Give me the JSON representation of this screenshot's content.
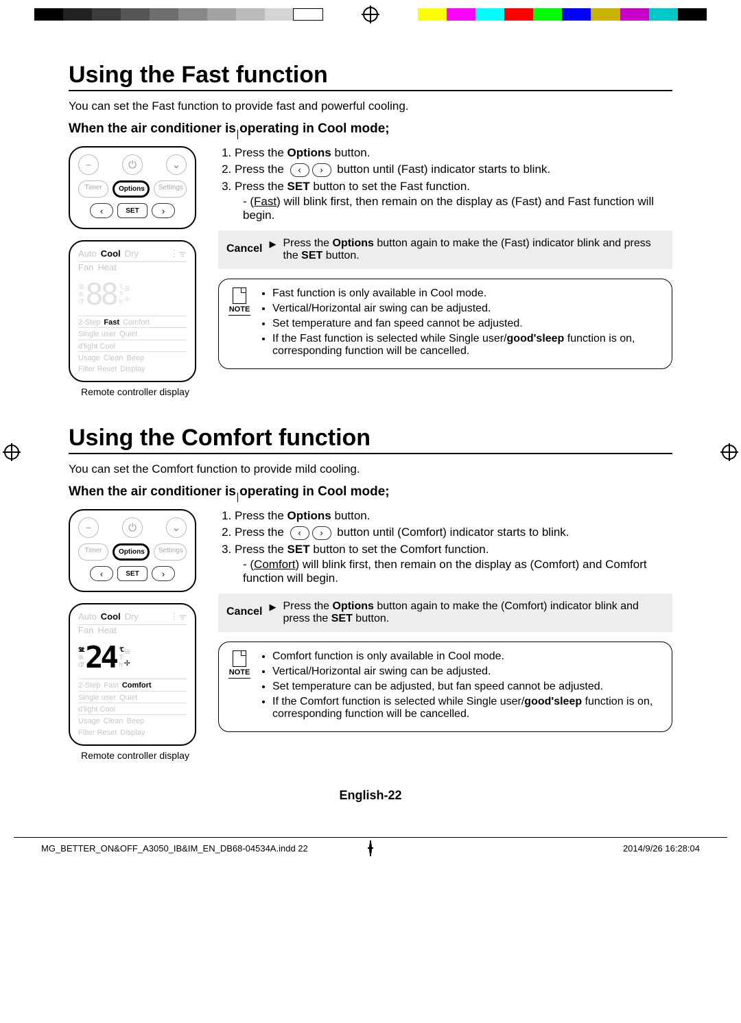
{
  "colorbar": {
    "left": [
      "#000000",
      "#222222",
      "#3c3c3c",
      "#555555",
      "#6f6f6f",
      "#888888",
      "#a2a2a2",
      "#bbbbbb",
      "#d5d5d5",
      "#ffffff"
    ],
    "right": [
      "#ffff00",
      "#ff00ff",
      "#00ffff",
      "#ff0000",
      "#00ff00",
      "#0000ff",
      "#c8b400",
      "#c800c8",
      "#00c8c8",
      "#000000"
    ]
  },
  "sectionA": {
    "title": "Using the Fast function",
    "intro": "You can set the Fast function to provide fast and powerful cooling.",
    "condition": "When the air conditioner is operating in Cool mode;",
    "steps": {
      "s1_a": "Press the ",
      "s1_b": "Options",
      "s1_c": " button.",
      "s2_a": "Press the ",
      "s2_b": " button until (Fast) indicator starts to blink.",
      "s3_a": "Press the ",
      "s3_b": "SET",
      "s3_c": " button to set the Fast function.",
      "s3_sub_a": "- (",
      "s3_sub_u": "Fast",
      "s3_sub_b": ") will blink first, then remain on the display as (Fast) and Fast function will begin."
    },
    "cancel": {
      "label": "Cancel",
      "a": "Press the ",
      "b": "Options",
      "c": " button again to make the (Fast) indicator blink and press the ",
      "d": "SET",
      "e": " button."
    },
    "notes": {
      "label": "NOTE",
      "n1": "Fast function is only available in Cool mode.",
      "n2": "Vertical/Horizontal air swing can be adjusted.",
      "n3": "Set temperature and fan speed cannot be adjusted.",
      "n4_a": "If  the Fast function is selected while Single user/",
      "n4_b": "good'sleep",
      "n4_c": " function is on, corresponding function will be cancelled."
    },
    "remote": {
      "timer": "Timer",
      "options": "Options",
      "settings": "Settings",
      "set": "SET"
    },
    "display": {
      "auto": "Auto",
      "cool": "Cool",
      "dry": "Dry",
      "fan": "Fan",
      "heat": "Heat",
      "set": "Set",
      "on": "On",
      "off": "Off",
      "degC": "°C",
      "degF": "°F",
      "hr": "hr",
      "twostep": "2-Step",
      "fast": "Fast",
      "comfort": "Comfort",
      "single": "Single user",
      "quiet": "Quiet",
      "dlight": "d'light Cool",
      "usage": "Usage",
      "clean": "Clean",
      "beep": "Beep",
      "filter": "Filter Reset",
      "disp": "Display",
      "digits": "88"
    },
    "caption": "Remote controller display"
  },
  "sectionB": {
    "title": "Using the Comfort function",
    "intro": "You can set the Comfort function to provide mild cooling.",
    "condition": "When the air conditioner is operating in Cool mode;",
    "steps": {
      "s1_a": "Press the ",
      "s1_b": "Options",
      "s1_c": " button.",
      "s2_a": "Press the ",
      "s2_b": " button until (Comfort) indicator starts to blink.",
      "s3_a": "Press the ",
      "s3_b": "SET",
      "s3_c": " button to set the Comfort function.",
      "s3_sub_a": "- (",
      "s3_sub_u": "Comfort",
      "s3_sub_b": ") will blink first, then remain on the display as (Comfort) and Comfort function will begin."
    },
    "cancel": {
      "label": "Cancel",
      "a": "Press the ",
      "b": "Options",
      "c": " button again to make the (Comfort) indicator blink and press the ",
      "d": "SET",
      "e": " button."
    },
    "notes": {
      "label": "NOTE",
      "n1": "Comfort function is only available in Cool mode.",
      "n2": "Vertical/Horizontal air swing can be adjusted.",
      "n3": "Set temperature can be adjusted, but fan speed cannot be adjusted.",
      "n4_a": "If the Comfort function is selected while Single user/",
      "n4_b": "good'sleep",
      "n4_c": " function is on, corresponding function will be cancelled."
    },
    "remote": {
      "timer": "Timer",
      "options": "Options",
      "settings": "Settings",
      "set": "SET"
    },
    "display": {
      "auto": "Auto",
      "cool": "Cool",
      "dry": "Dry",
      "fan": "Fan",
      "heat": "Heat",
      "set": "Set",
      "on": "On",
      "off": "Off",
      "degC": "°C",
      "degF": "°F",
      "hr": "hr",
      "twostep": "2-Step",
      "fast": "Fast",
      "comfort": "Comfort",
      "single": "Single user",
      "quiet": "Quiet",
      "dlight": "d'light Cool",
      "usage": "Usage",
      "clean": "Clean",
      "beep": "Beep",
      "filter": "Filter Reset",
      "disp": "Display",
      "digits": "24"
    },
    "caption": "Remote controller display"
  },
  "pageNum": "English-22",
  "footer": {
    "file": "MG_BETTER_ON&OFF_A3050_IB&IM_EN_DB68-04534A.indd   22",
    "date": "2014/9/26   16:28:04"
  }
}
